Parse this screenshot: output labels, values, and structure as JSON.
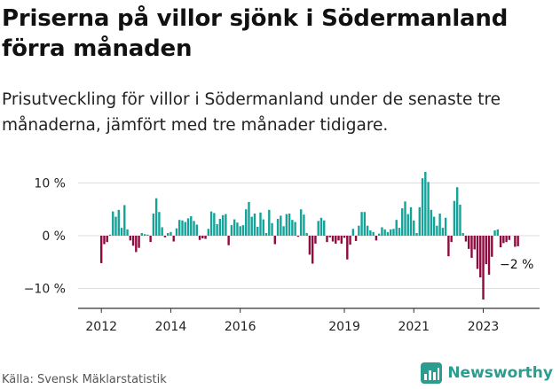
{
  "title": "Priserna på villor sjönk i Södermanland förra månaden",
  "subtitle": "Prisutveckling för villor i Södermanland under de senaste tre månaderna, jämfört med tre månader tidigare.",
  "source": "Källa: Svensk Mäklarstatistik",
  "brand": "Newsworthy",
  "colors": {
    "positive": "#14a39a",
    "negative": "#8e0b3f",
    "grid": "#dddddd",
    "axis": "#333333"
  },
  "chart_data": {
    "type": "bar",
    "y_unit": "%",
    "ylim": [
      -14,
      13
    ],
    "y_ticks": [
      10,
      0,
      -10
    ],
    "y_tick_labels": [
      "10 %",
      "0 %",
      "−10 %"
    ],
    "grid": true,
    "x_start": "2012-01",
    "x_ticks": [
      {
        "label": "2012",
        "index": 0
      },
      {
        "label": "2014",
        "index": 24
      },
      {
        "label": "2016",
        "index": 48
      },
      {
        "label": "2019",
        "index": 84
      },
      {
        "label": "2021",
        "index": 108
      },
      {
        "label": "2023",
        "index": 132
      }
    ],
    "annotation": "−2 %",
    "values": [
      -5.2,
      -1.6,
      -1.2,
      0.2,
      4.6,
      3.6,
      4.9,
      1.5,
      5.8,
      1.2,
      -0.9,
      -1.9,
      -3.1,
      -2.3,
      0.5,
      0.3,
      0.2,
      -1.2,
      4.2,
      7.1,
      4.5,
      1.6,
      -0.3,
      0.5,
      0.7,
      -1.1,
      1.4,
      3.0,
      2.9,
      2.6,
      3.3,
      3.7,
      2.8,
      2.1,
      -0.8,
      -0.5,
      -0.6,
      1.3,
      4.6,
      4.3,
      2.2,
      3.2,
      3.9,
      4.1,
      -1.8,
      2.0,
      3.1,
      2.5,
      1.8,
      2.0,
      5.0,
      6.4,
      3.6,
      4.2,
      1.7,
      4.4,
      3.1,
      0.5,
      4.9,
      2.4,
      -1.6,
      3.2,
      3.8,
      1.8,
      4.1,
      4.2,
      3.0,
      2.6,
      -0.2,
      5.0,
      4.0,
      0.5,
      -3.6,
      -5.3,
      -1.5,
      2.8,
      3.4,
      2.9,
      -1.2,
      -0.3,
      -1.1,
      -1.5,
      -0.9,
      -1.5,
      -0.4,
      -4.5,
      -1.7,
      1.3,
      -1.0,
      1.9,
      4.5,
      4.5,
      1.9,
      1.0,
      0.7,
      -0.9,
      0.4,
      1.6,
      1.2,
      0.7,
      1.2,
      1.3,
      3.0,
      1.5,
      5.2,
      6.5,
      4.1,
      5.4,
      2.9,
      0.5,
      5.4,
      10.9,
      12.1,
      10.2,
      4.9,
      3.6,
      1.9,
      4.2,
      1.5,
      3.4,
      -3.9,
      -1.2,
      6.6,
      9.2,
      5.9,
      0.5,
      -1.1,
      -2.5,
      -4.2,
      -2.6,
      -6.3,
      -7.9,
      -12.1,
      -5.4,
      -7.4,
      -4.0,
      1.0,
      1.2,
      -2.2,
      -1.4,
      -1.2,
      -0.8,
      0.0,
      -2.1,
      -2.0
    ]
  }
}
